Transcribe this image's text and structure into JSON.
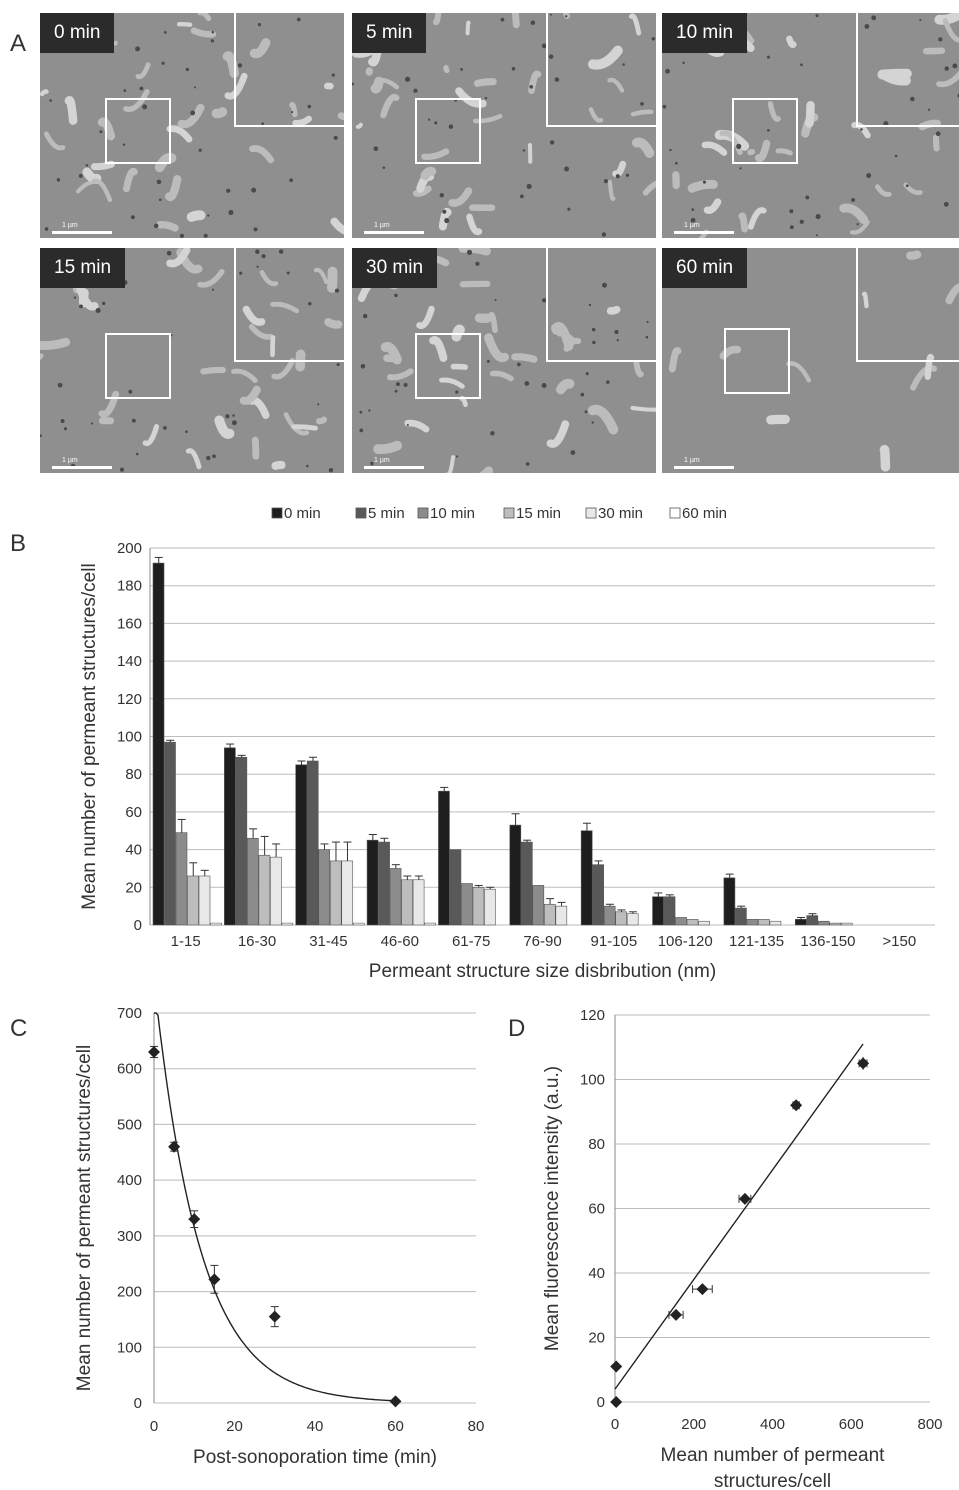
{
  "panels": {
    "a": "A",
    "b": "B",
    "c": "C",
    "d": "D"
  },
  "micrographs": [
    {
      "time": "0 min",
      "scale": "1 µm"
    },
    {
      "time": "5 min",
      "scale": "1 µm"
    },
    {
      "time": "10 min",
      "scale": "1 µm"
    },
    {
      "time": "15 min",
      "scale": "1 µm"
    },
    {
      "time": "30 min",
      "scale": "1 µm"
    },
    {
      "time": "60 min",
      "scale": "1 µm"
    }
  ],
  "colors": {
    "s0": "#1e1e1e",
    "s5": "#595959",
    "s10": "#8c8c8c",
    "s15": "#bdbdbd",
    "s30": "#e8e8e8",
    "s60": "#ffffff",
    "grid": "#bdbdbd",
    "marker": "#222222"
  },
  "chart_data": [
    {
      "type": "bar",
      "xlabel": "Permeant structure size disbribution (nm)",
      "ylabel": "Mean number of permeant structures/cell",
      "ylim": [
        0,
        200
      ],
      "yticks": [
        0,
        20,
        40,
        60,
        80,
        100,
        120,
        140,
        160,
        180,
        200
      ],
      "grid": true,
      "legend_position": "top",
      "categories": [
        "1-15",
        "16-30",
        "31-45",
        "46-60",
        "61-75",
        "76-90",
        "91-105",
        "106-120",
        "121-135",
        "136-150",
        ">150"
      ],
      "series": [
        {
          "name": "0 min",
          "values": [
            192,
            94,
            85,
            45,
            71,
            53,
            50,
            15,
            25,
            3,
            0
          ],
          "errors": [
            3,
            2,
            2,
            3,
            2,
            6,
            4,
            2,
            2,
            1,
            0
          ]
        },
        {
          "name": "5 min",
          "values": [
            97,
            89,
            87,
            44,
            40,
            44,
            32,
            15,
            9,
            5,
            0
          ],
          "errors": [
            1,
            1,
            2,
            2,
            0,
            1,
            2,
            1,
            1,
            1,
            0
          ]
        },
        {
          "name": "10 min",
          "values": [
            49,
            46,
            40,
            30,
            22,
            21,
            10,
            4,
            3,
            2,
            0
          ],
          "errors": [
            7,
            5,
            3,
            2,
            0,
            0,
            1,
            0,
            0,
            0,
            0
          ]
        },
        {
          "name": "15 min",
          "values": [
            26,
            37,
            34,
            24,
            20,
            11,
            7,
            3,
            3,
            1,
            0
          ],
          "errors": [
            7,
            10,
            10,
            2,
            1,
            3,
            1,
            0,
            0,
            0,
            0
          ]
        },
        {
          "name": "30 min",
          "values": [
            26,
            36,
            34,
            24,
            19,
            10,
            6,
            2,
            2,
            1,
            0
          ],
          "errors": [
            3,
            7,
            10,
            2,
            1,
            2,
            1,
            0,
            0,
            0,
            0
          ]
        },
        {
          "name": "60 min",
          "values": [
            1,
            1,
            1,
            1,
            0,
            0,
            0,
            0,
            0,
            0,
            0
          ],
          "errors": [
            0,
            0,
            0,
            0,
            0,
            0,
            0,
            0,
            0,
            0,
            0
          ]
        }
      ]
    },
    {
      "type": "scatter",
      "xlabel": "Post-sonoporation time (min)",
      "ylabel": "Mean number of  permeant structures/cell",
      "xlim": [
        0,
        80
      ],
      "ylim": [
        0,
        700
      ],
      "xticks": [
        0,
        20,
        40,
        60,
        80
      ],
      "yticks": [
        0,
        100,
        200,
        300,
        400,
        500,
        600,
        700
      ],
      "grid": true,
      "points": [
        {
          "x": 0,
          "y": 630,
          "err": 10
        },
        {
          "x": 5,
          "y": 460,
          "err": 8
        },
        {
          "x": 10,
          "y": 330,
          "err": 15
        },
        {
          "x": 15,
          "y": 222,
          "err": 25
        },
        {
          "x": 30,
          "y": 155,
          "err": 18
        },
        {
          "x": 60,
          "y": 3,
          "err": 2
        }
      ],
      "fit": {
        "type": "exponential",
        "a": 760,
        "k": 0.088
      }
    },
    {
      "type": "scatter",
      "xlabel": "Mean number of permeant structures/cell",
      "ylabel": "Mean fluorescence intensity (a.u.)",
      "xlim": [
        0,
        800
      ],
      "ylim": [
        0,
        120
      ],
      "xticks": [
        0,
        200,
        400,
        600,
        800
      ],
      "yticks": [
        0,
        20,
        40,
        60,
        80,
        100,
        120
      ],
      "grid": true,
      "points": [
        {
          "x": 3,
          "y": 0,
          "xerr": 2,
          "yerr": 0
        },
        {
          "x": 3,
          "y": 11,
          "xerr": 3,
          "yerr": 1
        },
        {
          "x": 155,
          "y": 27,
          "xerr": 18,
          "yerr": 1.5
        },
        {
          "x": 222,
          "y": 35,
          "xerr": 25,
          "yerr": 1
        },
        {
          "x": 330,
          "y": 63,
          "xerr": 15,
          "yerr": 1
        },
        {
          "x": 460,
          "y": 92,
          "xerr": 8,
          "yerr": 1
        },
        {
          "x": 630,
          "y": 105,
          "xerr": 10,
          "yerr": 2
        }
      ],
      "fit": {
        "type": "linear",
        "x0": 0,
        "y0": 4,
        "x1": 630,
        "y1": 111
      }
    }
  ]
}
